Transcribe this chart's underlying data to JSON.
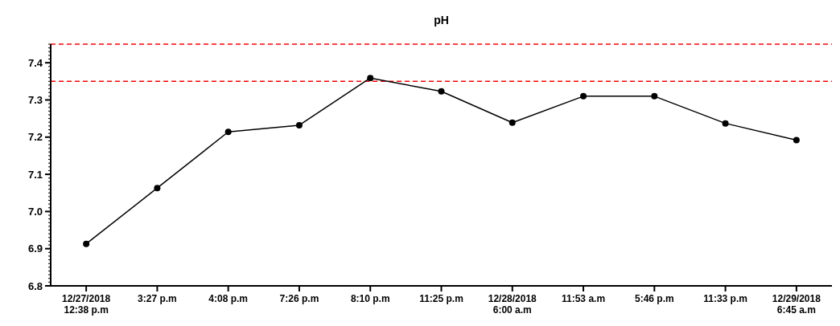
{
  "chart_data": {
    "type": "line",
    "title": "pH",
    "categories": [
      "12/27/2018\n12:38 p.m",
      "3:27 p.m",
      "4:08 p.m",
      "7:26 p.m",
      "8:10 p.m",
      "11:25 p.m",
      "12/28/2018\n6:00 a.m",
      "11:53 a.m",
      "5:46 p.m",
      "11:33 p.m",
      "12/29/2018\n6:45 a.m"
    ],
    "series": [
      {
        "color": "#000000",
        "values": [
          6.913,
          7.063,
          7.214,
          7.232,
          7.359,
          7.323,
          7.239,
          7.31,
          7.31,
          7.237,
          7.192
        ]
      }
    ],
    "ylim": [
      6.8,
      7.45
    ],
    "yticks": [
      {
        "value": 6.8,
        "label": "6.8"
      },
      {
        "value": 6.9,
        "label": "6.9"
      },
      {
        "value": 7,
        "label": "7.0"
      },
      {
        "value": 7.1,
        "label": "7.1"
      },
      {
        "value": 7.2,
        "label": "7.2"
      },
      {
        "value": 7.3,
        "label": "7.3"
      },
      {
        "value": 7.4,
        "label": "7.4"
      }
    ],
    "ref_lines": [
      {
        "axis": "y",
        "value": 7.35,
        "color": "#ff0000",
        "line_style": "dashed"
      },
      {
        "axis": "y",
        "value": 7.45,
        "color": "#ff0000",
        "line_style": "dashed"
      }
    ],
    "marker": "circle",
    "line_style": "solid",
    "grid": false
  }
}
